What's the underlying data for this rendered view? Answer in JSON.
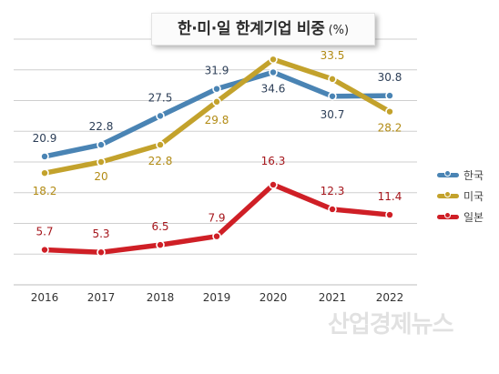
{
  "title": {
    "main": "한·미·일 한계기업 비중",
    "unit": "(%)"
  },
  "watermark": "산업경제뉴스",
  "colors": {
    "korea": "#4a84b4",
    "usa": "#c3a22c",
    "japan": "#cf1f26",
    "grid": "#cfcfcf"
  },
  "chart_data": {
    "type": "line",
    "categories": [
      "2016",
      "2017",
      "2018",
      "2019",
      "2020",
      "2021",
      "2022"
    ],
    "series": [
      {
        "name": "한국",
        "values": [
          20.9,
          22.8,
          27.5,
          31.9,
          34.6,
          30.7,
          30.8
        ]
      },
      {
        "name": "미국",
        "values": [
          18.2,
          20,
          22.8,
          29.8,
          36.7,
          33.5,
          28.2
        ]
      },
      {
        "name": "일본",
        "values": [
          5.7,
          5.3,
          6.5,
          7.9,
          16.3,
          12.3,
          11.4
        ]
      }
    ],
    "ylim": [
      0,
      40
    ],
    "grid": true,
    "legend": "right"
  }
}
